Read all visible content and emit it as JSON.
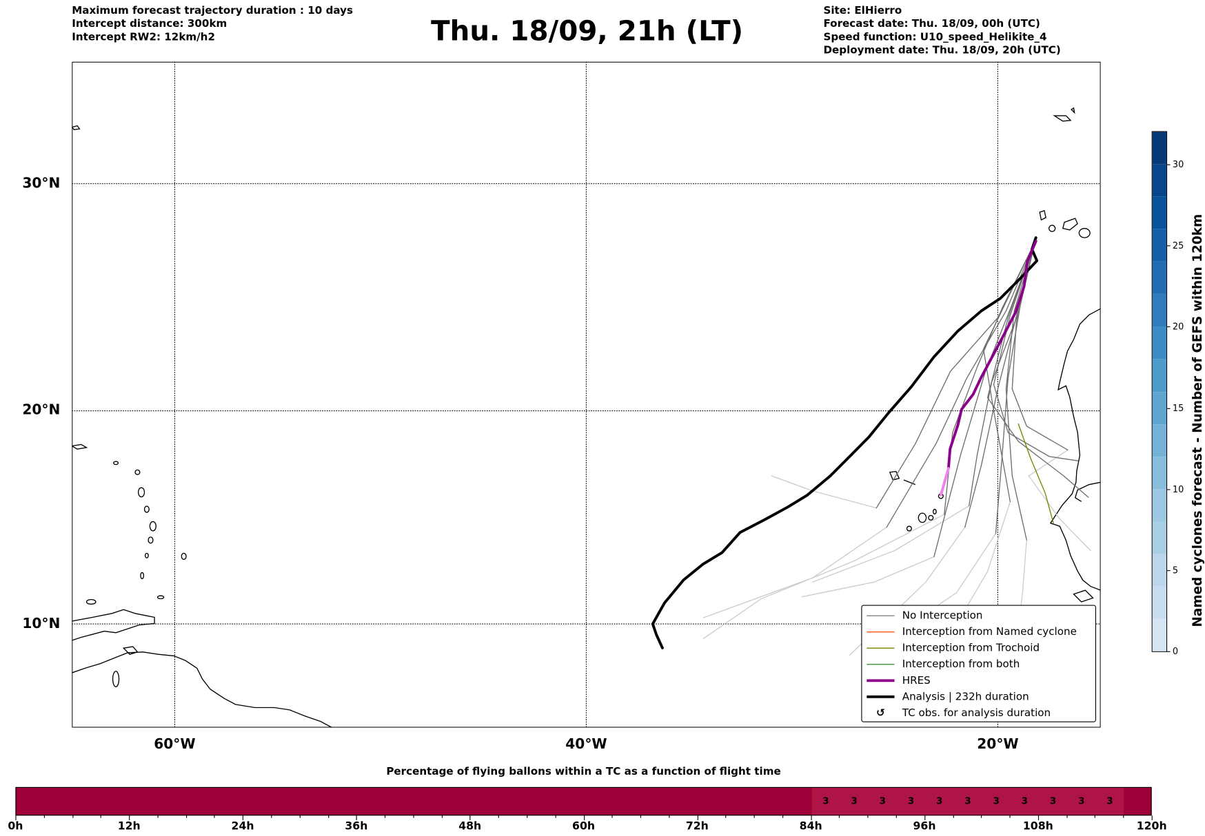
{
  "header": {
    "left": [
      "Maximum forecast trajectory duration : 10 days",
      "Intercept distance: 300km",
      "Intercept RW2: 12km/h2"
    ],
    "title": "Thu. 18/09, 21h (LT)",
    "right": [
      "Site: ElHierro",
      "Forecast date: Thu. 18/09, 00h (UTC)",
      "Speed function: U10_speed_Helikite_4",
      "Deployment date: Thu. 18/09, 20h (UTC)"
    ]
  },
  "map": {
    "extent": {
      "lon": [
        -65,
        -15
      ],
      "lat": [
        5,
        35
      ]
    },
    "lat_labels": [
      {
        "lat": 30,
        "label": "30°N"
      },
      {
        "lat": 20,
        "label": "20°N"
      },
      {
        "lat": 10,
        "label": "10°N"
      }
    ],
    "lon_labels": [
      {
        "lon": -60,
        "label": "60°W"
      },
      {
        "lon": -40,
        "label": "40°W"
      },
      {
        "lon": -20,
        "label": "20°W"
      }
    ],
    "colors": {
      "analysis": "#000000",
      "hres": "#8b008b",
      "hres_tail": "#ee82ee",
      "no_interception": "#6e6e6e",
      "after": "#cccccc",
      "trochoid": "#808000",
      "named": "#ff5500",
      "both": "#228b22"
    },
    "analysis_track": [
      [
        -18.15,
        27.7
      ],
      [
        -18.34,
        27.2
      ],
      [
        -18.1,
        26.7
      ],
      [
        -18.94,
        25.9
      ],
      [
        -19.88,
        25.05
      ],
      [
        -20.8,
        24.5
      ],
      [
        -21.95,
        23.6
      ],
      [
        -23.1,
        22.45
      ],
      [
        -24.2,
        21.1
      ],
      [
        -25.32,
        19.9
      ],
      [
        -26.26,
        18.8
      ],
      [
        -27.2,
        17.9
      ],
      [
        -28.14,
        17.0
      ],
      [
        -29.26,
        16.1
      ],
      [
        -30.2,
        15.55
      ],
      [
        -31.33,
        14.95
      ],
      [
        -32.53,
        14.35
      ],
      [
        -33.4,
        13.4
      ],
      [
        -34.33,
        12.85
      ],
      [
        -35.27,
        12.1
      ],
      [
        -36.2,
        11.0
      ],
      [
        -36.77,
        10.0
      ],
      [
        -36.6,
        9.5
      ],
      [
        -36.3,
        8.85
      ]
    ],
    "hres_track": [
      [
        -18.15,
        27.55
      ],
      [
        -18.57,
        26.65
      ],
      [
        -18.72,
        25.6
      ],
      [
        -19.13,
        24.45
      ],
      [
        -19.7,
        23.45
      ],
      [
        -20.07,
        22.8
      ],
      [
        -20.82,
        21.5
      ],
      [
        -21.2,
        20.75
      ],
      [
        -21.76,
        20.07
      ],
      [
        -21.94,
        19.35
      ],
      [
        -22.32,
        18.25
      ],
      [
        -22.4,
        17.35
      ]
    ],
    "hres_tail": [
      [
        -22.4,
        17.35
      ],
      [
        -22.77,
        16.1
      ]
    ],
    "trochoid_track": [
      [
        -19.0,
        19.4
      ],
      [
        -18.4,
        17.8
      ],
      [
        -17.7,
        16.2
      ],
      [
        -17.3,
        14.8
      ]
    ],
    "ensemble_tracks": [
      [
        [
          -18.2,
          27.5
        ],
        [
          -19.6,
          24.5
        ],
        [
          -21.5,
          21.5
        ],
        [
          -23.0,
          18.5
        ],
        [
          -25.4,
          14.6
        ]
      ],
      [
        [
          -18.2,
          27.5
        ],
        [
          -19.3,
          24.8
        ],
        [
          -20.6,
          21.8
        ],
        [
          -21.8,
          18.0
        ],
        [
          -23.1,
          13.2
        ]
      ],
      [
        [
          -18.2,
          27.5
        ],
        [
          -19.0,
          24.6
        ],
        [
          -20.0,
          21.0
        ],
        [
          -20.8,
          17.5
        ],
        [
          -21.6,
          14.6
        ]
      ],
      [
        [
          -18.2,
          27.5
        ],
        [
          -18.9,
          24.8
        ],
        [
          -19.5,
          21.5
        ],
        [
          -19.8,
          17.8
        ],
        [
          -20.1,
          14.3
        ]
      ],
      [
        [
          -18.2,
          27.5
        ],
        [
          -19.2,
          24.5
        ],
        [
          -19.6,
          21.0
        ],
        [
          -19.3,
          17.0
        ],
        [
          -18.6,
          14.0
        ]
      ],
      [
        [
          -18.2,
          27.5
        ],
        [
          -19.4,
          24.3
        ],
        [
          -20.2,
          21.2
        ],
        [
          -19.5,
          19.0
        ],
        [
          -17.5,
          17.9
        ],
        [
          -16.1,
          17.7
        ]
      ],
      [
        [
          -18.2,
          27.5
        ],
        [
          -19.5,
          24.2
        ],
        [
          -20.5,
          20.6
        ],
        [
          -19.0,
          18.6
        ],
        [
          -16.8,
          17.0
        ],
        [
          -15.6,
          16.0
        ]
      ],
      [
        [
          -18.2,
          27.5
        ],
        [
          -19.1,
          24.0
        ],
        [
          -19.3,
          21.0
        ],
        [
          -18.6,
          19.3
        ],
        [
          -16.6,
          18.2
        ]
      ],
      [
        [
          -18.2,
          27.5
        ],
        [
          -20.0,
          24.2
        ],
        [
          -22.3,
          21.8
        ],
        [
          -24.0,
          18.5
        ],
        [
          -25.9,
          15.5
        ]
      ],
      [
        [
          -18.2,
          27.5
        ],
        [
          -19.8,
          24.6
        ],
        [
          -21.0,
          22.0
        ],
        [
          -22.2,
          19.0
        ],
        [
          -22.6,
          15.2
        ]
      ],
      [
        [
          -18.2,
          27.5
        ],
        [
          -19.0,
          24.4
        ],
        [
          -20.3,
          21.3
        ],
        [
          -21.0,
          18.0
        ],
        [
          -21.4,
          15.6
        ]
      ],
      [
        [
          -18.2,
          27.5
        ],
        [
          -19.6,
          24.9
        ],
        [
          -20.7,
          22.8
        ],
        [
          -20.2,
          20.0
        ],
        [
          -19.4,
          15.8
        ]
      ]
    ],
    "after_tracks": [
      [
        [
          -23.1,
          13.2
        ],
        [
          -26.0,
          12.0
        ],
        [
          -29.5,
          11.3
        ]
      ],
      [
        [
          -25.4,
          14.6
        ],
        [
          -29.0,
          12.2
        ],
        [
          -34.3,
          10.3
        ]
      ],
      [
        [
          -21.6,
          14.6
        ],
        [
          -23.5,
          12.0
        ],
        [
          -27.2,
          8.5
        ]
      ],
      [
        [
          -20.1,
          14.3
        ],
        [
          -22.0,
          11.5
        ],
        [
          -25.0,
          9.5
        ]
      ],
      [
        [
          -18.6,
          14.0
        ],
        [
          -18.8,
          11.5
        ],
        [
          -19.0,
          9.8
        ]
      ],
      [
        [
          -22.6,
          15.2
        ],
        [
          -27.0,
          13.0
        ],
        [
          -31.5,
          11.2
        ],
        [
          -34.3,
          9.3
        ]
      ],
      [
        [
          -21.4,
          15.6
        ],
        [
          -25.0,
          13.5
        ],
        [
          -29.0,
          12.0
        ]
      ],
      [
        [
          -19.4,
          15.8
        ],
        [
          -20.5,
          12.5
        ],
        [
          -22.0,
          10.0
        ]
      ],
      [
        [
          -25.9,
          15.5
        ],
        [
          -29.0,
          16.3
        ],
        [
          -31.0,
          17.0
        ]
      ],
      [
        [
          -16.6,
          18.2
        ],
        [
          -18.5,
          17.0
        ],
        [
          -17.0,
          15.0
        ],
        [
          -15.5,
          13.5
        ]
      ]
    ]
  },
  "legend": [
    {
      "label": "No Interception"
    },
    {
      "label": "Interception from Named cyclone"
    },
    {
      "label": "Interception from Trochoid"
    },
    {
      "label": "Interception from both"
    },
    {
      "label": "HRES"
    },
    {
      "label": "Analysis | 232h duration"
    },
    {
      "label": "TC obs. for analysis duration",
      "icon": "↺"
    }
  ],
  "colorbar": {
    "label": "Named cyclones forecast - Number of GEFS within 120km",
    "min": 0,
    "max": 32,
    "ticks": [
      0,
      5,
      10,
      15,
      20,
      25,
      30
    ],
    "colors": [
      "#d6e5f4",
      "#cadcef",
      "#bdd6ec",
      "#aacfe5",
      "#9cc8e2",
      "#88bedc",
      "#74b2d8",
      "#61a6d1",
      "#4e9acb",
      "#3d8bc3",
      "#2f7bbb",
      "#226cb1",
      "#1560a8",
      "#09539d",
      "#08468b",
      "#083a7a"
    ]
  },
  "timebar": {
    "title": "Percentage of flying ballons within a TC as a function of flight time",
    "range_h": [
      0,
      120
    ],
    "base_color": "#9e003a",
    "highlight_color": "#ae1445",
    "highlight_range_h": [
      84,
      117
    ],
    "values": [
      {
        "h": 85.5,
        "v": "3"
      },
      {
        "h": 88.5,
        "v": "3"
      },
      {
        "h": 91.5,
        "v": "3"
      },
      {
        "h": 94.5,
        "v": "3"
      },
      {
        "h": 97.5,
        "v": "3"
      },
      {
        "h": 100.5,
        "v": "3"
      },
      {
        "h": 103.5,
        "v": "3"
      },
      {
        "h": 106.5,
        "v": "3"
      },
      {
        "h": 109.5,
        "v": "3"
      },
      {
        "h": 112.5,
        "v": "3"
      },
      {
        "h": 115.5,
        "v": "3"
      }
    ],
    "tick_labels": [
      "0h",
      "12h",
      "24h",
      "36h",
      "48h",
      "60h",
      "72h",
      "84h",
      "96h",
      "108h",
      "120h"
    ]
  }
}
